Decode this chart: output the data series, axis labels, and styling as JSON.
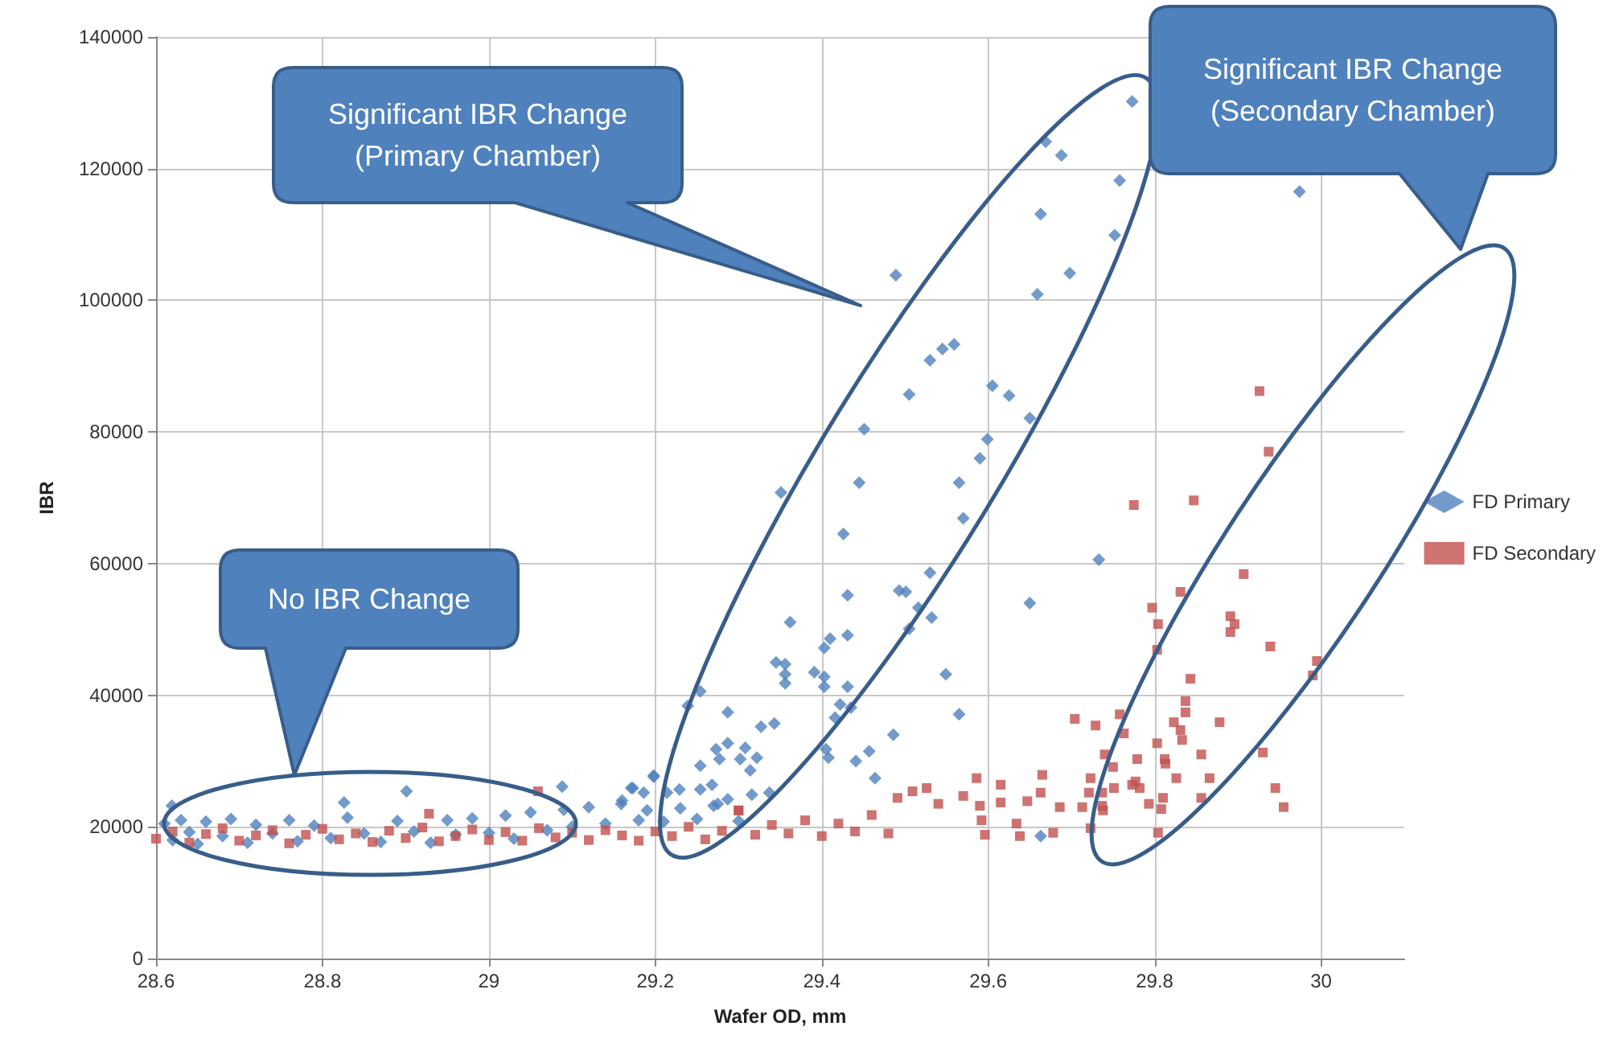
{
  "chart_data": {
    "type": "scatter",
    "xlabel": "Wafer OD, mm",
    "ylabel": "IBR",
    "xlim": [
      28.6,
      30.1
    ],
    "xticks": [
      28.6,
      28.8,
      29,
      29.2,
      29.4,
      29.6,
      29.8,
      30
    ],
    "ylim": [
      0,
      140000
    ],
    "yticks": [
      0,
      20000,
      40000,
      60000,
      80000,
      100000,
      120000,
      140000
    ],
    "grid": true,
    "legend": "right",
    "annotations": [
      "Significant  IBR Change\n(Primary Chamber)",
      "Significant  IBR Change\n(Secondary Chamber)",
      "No IBR Change"
    ],
    "series": [
      {
        "name": "FD Primary",
        "color": "#4f81bd",
        "marker": "diamond",
        "x": [
          28.61,
          28.62,
          28.63,
          28.64,
          28.65,
          28.66,
          28.68,
          28.69,
          28.71,
          28.72,
          28.74,
          28.76,
          28.77,
          28.79,
          28.81,
          28.83,
          28.85,
          28.87,
          28.89,
          28.91,
          28.93,
          28.95,
          28.96,
          28.98,
          29.0,
          29.02,
          29.03,
          29.05,
          29.07,
          29.09,
          29.1,
          29.12,
          29.14,
          29.16,
          29.18,
          29.19,
          29.21,
          29.23,
          29.25,
          29.27,
          29.3,
          28.619,
          28.826,
          28.901,
          29.088,
          29.171,
          29.198,
          29.773,
          29.669,
          29.688,
          29.758,
          29.663,
          29.752,
          29.698,
          29.659,
          29.489,
          29.53,
          29.545,
          29.559,
          29.505,
          29.605,
          29.625,
          29.65,
          29.451,
          29.599,
          29.59,
          29.445,
          29.565,
          29.351,
          29.974,
          29.57,
          29.426,
          29.733,
          29.431,
          29.493,
          29.501,
          29.53,
          29.65,
          29.516,
          29.362,
          29.532,
          29.505,
          29.41,
          29.431,
          29.403,
          29.345,
          29.356,
          29.356,
          29.356,
          29.391,
          29.403,
          29.403,
          29.431,
          29.549,
          29.254,
          29.239,
          29.422,
          29.435,
          29.416,
          29.565,
          29.287,
          29.327,
          29.343,
          29.486,
          29.273,
          29.287,
          29.308,
          29.277,
          29.302,
          29.322,
          29.405,
          29.457,
          29.441,
          29.254,
          29.314,
          29.408,
          29.198,
          29.464,
          29.268,
          29.173,
          29.229,
          29.254,
          29.214,
          29.337,
          29.316,
          29.287,
          29.275,
          29.186,
          29.159,
          29.663
        ],
        "values": [
          20500,
          18000,
          21000,
          19200,
          17400,
          20800,
          18600,
          21200,
          17600,
          20300,
          19000,
          21000,
          17800,
          20200,
          18300,
          21400,
          19000,
          17700,
          20900,
          19300,
          17600,
          21000,
          18800,
          21300,
          19100,
          21700,
          18200,
          22200,
          19500,
          22600,
          20000,
          23000,
          20500,
          24000,
          21000,
          22500,
          20800,
          22800,
          21200,
          23200,
          20900,
          23200,
          23700,
          25400,
          26100,
          25900,
          27800,
          130200,
          124100,
          122000,
          118200,
          113100,
          109900,
          104100,
          100900,
          103800,
          90900,
          92600,
          93300,
          85700,
          87000,
          85500,
          82100,
          80400,
          78900,
          76000,
          72300,
          72300,
          70800,
          116500,
          66900,
          64500,
          60600,
          55200,
          55900,
          55700,
          58600,
          54000,
          53300,
          51100,
          51800,
          50100,
          48600,
          49100,
          47200,
          45000,
          44700,
          43200,
          41800,
          43500,
          42800,
          41300,
          41300,
          43200,
          40600,
          38400,
          38600,
          38100,
          36600,
          37100,
          37400,
          35200,
          35700,
          34000,
          31800,
          32700,
          32000,
          30300,
          30300,
          30500,
          31800,
          31500,
          30000,
          29300,
          28600,
          30500,
          27600,
          27400,
          26400,
          25900,
          25700,
          25700,
          25200,
          25200,
          24900,
          24200,
          23500,
          25200,
          23500,
          18600
        ]
      },
      {
        "name": "FD Secondary",
        "color": "#c0504d",
        "marker": "square",
        "x": [
          28.6,
          28.62,
          28.64,
          28.66,
          28.68,
          28.7,
          28.72,
          28.74,
          28.76,
          28.78,
          28.8,
          28.82,
          28.84,
          28.86,
          28.88,
          28.9,
          28.92,
          28.94,
          28.96,
          28.98,
          29.0,
          29.02,
          29.04,
          29.06,
          29.08,
          29.1,
          29.12,
          29.14,
          29.16,
          29.18,
          29.2,
          29.22,
          29.24,
          29.26,
          29.28,
          29.3,
          29.32,
          29.34,
          29.36,
          29.38,
          29.4,
          29.42,
          29.44,
          29.46,
          29.48,
          28.928,
          29.059,
          29.3,
          29.775,
          29.804,
          29.704,
          29.729,
          29.763,
          29.823,
          29.833,
          29.74,
          29.75,
          29.779,
          29.813,
          29.773,
          29.81,
          29.808,
          29.586,
          29.615,
          29.665,
          29.663,
          29.721,
          29.723,
          29.804,
          29.509,
          29.526,
          29.491,
          29.57,
          29.59,
          29.615,
          29.647,
          29.686,
          29.713,
          29.738,
          29.54,
          29.592,
          29.634,
          29.678,
          29.723,
          29.638,
          29.596,
          29.926,
          29.937,
          29.847,
          29.907,
          29.831,
          29.797,
          29.891,
          29.896,
          29.891,
          29.803,
          29.939,
          29.995,
          29.99,
          29.843,
          29.837,
          29.837,
          29.758,
          29.878,
          29.831,
          29.803,
          29.856,
          29.93,
          29.812,
          29.826,
          29.866,
          29.777,
          29.782,
          29.751,
          29.737,
          29.945,
          29.955,
          29.856,
          29.793,
          29.737
        ],
        "values": [
          18200,
          19300,
          17600,
          18900,
          19800,
          17900,
          18700,
          19500,
          17500,
          18800,
          19700,
          18100,
          19000,
          17700,
          19400,
          18300,
          19900,
          17800,
          18600,
          19600,
          18000,
          19200,
          17900,
          19800,
          18400,
          19100,
          18000,
          19500,
          18700,
          17900,
          19300,
          18600,
          20000,
          18100,
          19400,
          22500,
          18800,
          20300,
          19000,
          21000,
          18600,
          20500,
          19300,
          21800,
          19000,
          22000,
          25400,
          22500,
          68900,
          50800,
          36400,
          35400,
          34200,
          35900,
          33200,
          31000,
          29100,
          30300,
          29600,
          26400,
          24400,
          22700,
          27400,
          26400,
          27900,
          25200,
          25200,
          27400,
          19100,
          25400,
          25900,
          24400,
          24700,
          23200,
          23700,
          23900,
          23000,
          23000,
          22500,
          23500,
          21000,
          20500,
          19100,
          19800,
          18600,
          18800,
          86200,
          77000,
          69600,
          58400,
          55700,
          53300,
          52000,
          50800,
          49600,
          46900,
          47400,
          45200,
          43000,
          42500,
          39100,
          37400,
          37100,
          35900,
          34700,
          32700,
          31000,
          31300,
          30300,
          27400,
          27400,
          26900,
          25900,
          25900,
          25200,
          25900,
          23000,
          24400,
          23500,
          23200
        ]
      }
    ]
  }
}
